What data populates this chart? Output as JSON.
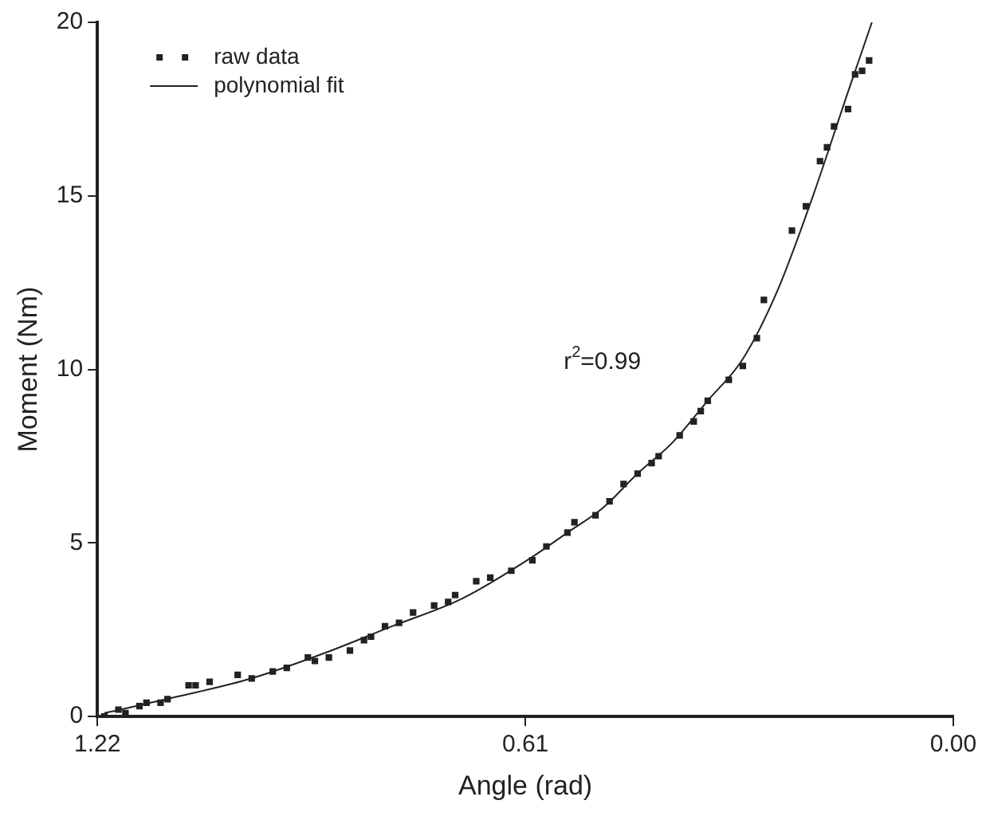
{
  "chart_data": {
    "type": "scatter",
    "xlabel": "Angle (rad)",
    "ylabel": "Moment (Nm)",
    "xlim": [
      1.22,
      0
    ],
    "xticks": [
      1.22,
      0.61,
      {
        "value": 0,
        "label": "0.00"
      }
    ],
    "ylim": [
      0,
      20
    ],
    "yticks": [
      0,
      5,
      10,
      15,
      20
    ],
    "grid": false,
    "legend": "top left",
    "marker": "square",
    "annotations": [
      "r$^{2}$=0.99"
    ],
    "series": [
      {
        "name": "raw data",
        "type": "scatter",
        "color": "#222222",
        "x": [
          1.21,
          1.19,
          1.18,
          1.16,
          1.15,
          1.13,
          1.12,
          1.09,
          1.08,
          1.06,
          1.02,
          1.0,
          0.97,
          0.95,
          0.92,
          0.91,
          0.89,
          0.86,
          0.84,
          0.83,
          0.81,
          0.79,
          0.77,
          0.74,
          0.72,
          0.71,
          0.68,
          0.66,
          0.63,
          0.6,
          0.58,
          0.55,
          0.54,
          0.51,
          0.49,
          0.47,
          0.45,
          0.43,
          0.42,
          0.39,
          0.37,
          0.36,
          0.35,
          0.32,
          0.3,
          0.28,
          0.27,
          0.23,
          0.21,
          0.19,
          0.18,
          0.17,
          0.15,
          0.14,
          0.13,
          0.12
        ],
        "values": [
          0,
          0.2,
          0.1,
          0.3,
          0.4,
          0.4,
          0.5,
          0.9,
          0.9,
          1.0,
          1.2,
          1.1,
          1.3,
          1.4,
          1.7,
          1.6,
          1.7,
          1.9,
          2.2,
          2.3,
          2.6,
          2.7,
          3.0,
          3.2,
          3.3,
          3.5,
          3.9,
          4.0,
          4.2,
          4.5,
          4.9,
          5.3,
          5.6,
          5.8,
          6.2,
          6.7,
          7.0,
          7.3,
          7.5,
          8.1,
          8.5,
          8.8,
          9.1,
          9.7,
          10.1,
          10.9,
          12.0,
          14.0,
          14.7,
          16.0,
          16.4,
          17.0,
          17.5,
          18.5,
          18.6,
          18.9
        ]
      },
      {
        "name": "polynomial fit",
        "type": "line",
        "color": "#222222",
        "line_style": "solid",
        "marker": "none",
        "x": [
          1.21,
          1.1,
          1.0,
          0.9,
          0.8,
          0.7,
          0.6,
          0.55,
          0.5,
          0.45,
          0.4,
          0.35,
          0.3,
          0.25,
          0.2,
          0.15,
          0.116
        ],
        "values": [
          0.1,
          0.6,
          1.1,
          1.8,
          2.6,
          3.4,
          4.6,
          5.3,
          6.0,
          7.0,
          7.9,
          9.1,
          10.3,
          12.3,
          15.0,
          18.0,
          20.0
        ]
      }
    ]
  }
}
